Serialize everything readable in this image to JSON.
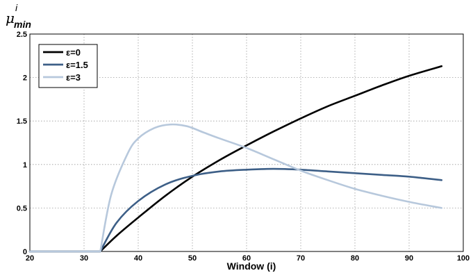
{
  "chart_data": {
    "type": "line",
    "title": "",
    "xlabel": "Window (i)",
    "ylabel": {
      "base": "μ",
      "sub": "min",
      "sup": "i"
    },
    "xlim": [
      20,
      100
    ],
    "ylim": [
      0,
      2.5
    ],
    "xticks": [
      "20",
      "30",
      "40",
      "50",
      "60",
      "70",
      "80",
      "90",
      "100"
    ],
    "yticks": [
      "0",
      "0.5",
      "1",
      "1.5",
      "2",
      "2.5"
    ],
    "grid": true,
    "legend_position": "top-left",
    "series": [
      {
        "name": "ε=0",
        "color": "#000000",
        "x": [
          20,
          33,
          36,
          40,
          45,
          50,
          55,
          60,
          65,
          70,
          75,
          80,
          85,
          90,
          96
        ],
        "y": [
          0,
          0,
          0.18,
          0.39,
          0.64,
          0.86,
          1.05,
          1.22,
          1.38,
          1.53,
          1.67,
          1.79,
          1.91,
          2.02,
          2.13
        ]
      },
      {
        "name": "ε=1.5",
        "color": "#3d5f87",
        "x": [
          20,
          33,
          36,
          40,
          45,
          50,
          55,
          60,
          65,
          70,
          75,
          80,
          85,
          90,
          96
        ],
        "y": [
          0,
          0,
          0.33,
          0.58,
          0.77,
          0.87,
          0.92,
          0.94,
          0.95,
          0.94,
          0.92,
          0.9,
          0.88,
          0.86,
          0.82
        ]
      },
      {
        "name": "ε=3",
        "color": "#b7c8dc",
        "x": [
          20,
          33,
          35,
          38,
          40,
          43,
          46,
          49,
          52,
          55,
          60,
          65,
          70,
          75,
          80,
          85,
          90,
          96
        ],
        "y": [
          0,
          0,
          0.65,
          1.12,
          1.3,
          1.42,
          1.46,
          1.44,
          1.37,
          1.3,
          1.19,
          1.06,
          0.93,
          0.82,
          0.72,
          0.64,
          0.57,
          0.5
        ]
      }
    ]
  }
}
